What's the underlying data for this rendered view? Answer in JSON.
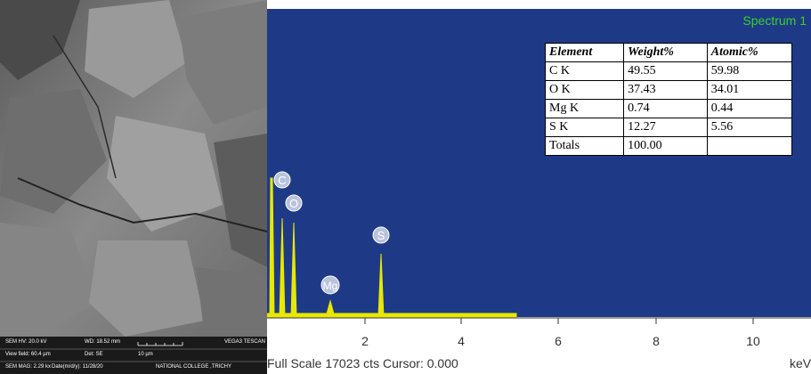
{
  "sem": {
    "hv": "SEM HV: 20.0 kV",
    "wd": "WD: 18.52 mm",
    "instrument": "VEGA3 TESCAN",
    "view_field": "View field: 60.4 µm",
    "detector": "Det: SE",
    "scale": "10 µm",
    "mag": "SEM MAG: 2.29 kx",
    "date": "Date(m/d/y): 11/28/20",
    "lab": "NATIONAL COLLEGE ,TRICHY"
  },
  "spectrum": {
    "title": "Spectrum 1",
    "table": {
      "header": [
        "Element",
        "Weight%",
        "Atomic%"
      ],
      "rows": [
        [
          "C K",
          "49.55",
          "59.98"
        ],
        [
          "O K",
          "37.43",
          "34.01"
        ],
        [
          "Mg K",
          "0.74",
          "0.44"
        ],
        [
          "S K",
          "12.27",
          "5.56"
        ],
        [
          "Totals",
          "100.00",
          ""
        ]
      ]
    },
    "peaks": [
      "C",
      "O",
      "Mg",
      "S"
    ],
    "axis_labels": [
      "2",
      "4",
      "6",
      "8",
      "10"
    ],
    "unit": "keV",
    "footer": "Full Scale 17023 cts Cursor: 0.000"
  }
}
